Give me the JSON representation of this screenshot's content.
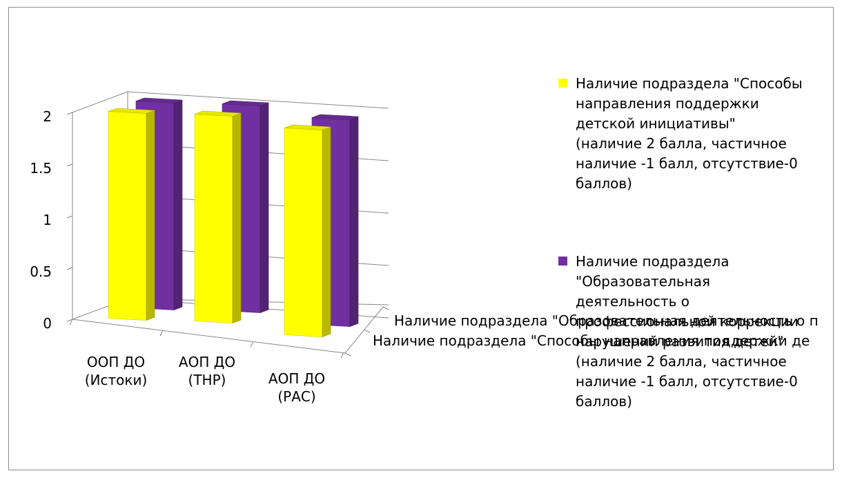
{
  "chart_data": {
    "type": "bar",
    "title": "",
    "xlabel": "",
    "ylabel": "",
    "ylim": [
      0,
      2
    ],
    "yticks": [
      "0",
      "0.5",
      "1",
      "1.5",
      "2"
    ],
    "categories": [
      "ООП ДО (Истоки)",
      "АОП ДО (ТНР)",
      "АОП ДО (РАС)"
    ],
    "series": [
      {
        "name": "Наличие подраздела \"Способы направления поддержки детской инициативы\" (наличие 2 балла, частичное наличие -1 балл, отсутствие-0 баллов)",
        "values": [
          2,
          2,
          2
        ],
        "color": "#FFFF00",
        "depth_label": "Наличие подраздела \"Способы направления поддержки де"
      },
      {
        "name": "Наличие подраздела \"Образовательная деятельность о профессиональной коррекции нарушений развития детей\" (наличие 2 балла, частичное наличие -1 балл, отсутствие-0 баллов)",
        "values": [
          2,
          2,
          2
        ],
        "color": "#7030A0",
        "depth_label": "Наличие подраздела \"Образовательная деятельность о п"
      }
    ],
    "grid": true,
    "legend_position": "right",
    "style": "3d-clustered-columns"
  }
}
